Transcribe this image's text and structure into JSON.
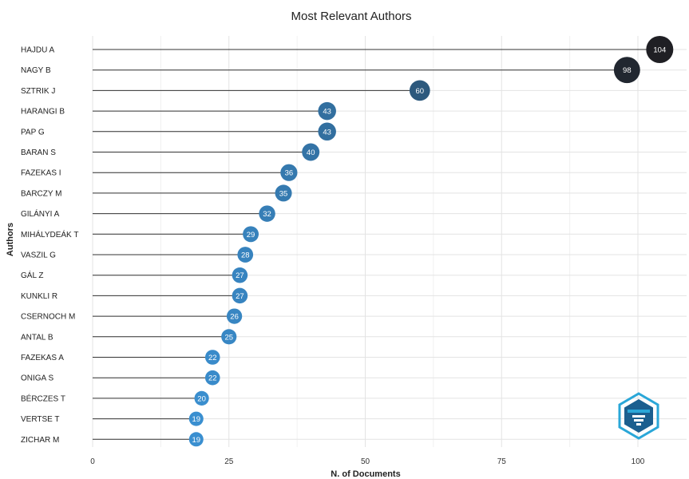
{
  "chart_data": {
    "type": "lollipop",
    "title": "Most Relevant Authors",
    "xlabel": "N. of Documents",
    "ylabel": "Authors",
    "xlim": [
      0,
      108
    ],
    "xticks": [
      0,
      25,
      50,
      75,
      100
    ],
    "grid": true,
    "categories": [
      "HAJDU A",
      "NAGY B",
      "SZTRIK J",
      "HARANGI B",
      "PAP G",
      "BARAN S",
      "FAZEKAS I",
      "BARCZY M",
      "GILÁNYI A",
      "MIHÁLYDEÁK T",
      "VASZIL G",
      "GÁL Z",
      "KUNKLI R",
      "CSERNOCH M",
      "ANTAL B",
      "FAZEKAS A",
      "ONIGA S",
      "BÉRCZES T",
      "VERTSE T",
      "ZICHAR M"
    ],
    "values": [
      104,
      98,
      60,
      43,
      43,
      40,
      36,
      35,
      32,
      29,
      28,
      27,
      27,
      26,
      25,
      22,
      22,
      20,
      19,
      19
    ],
    "color_low": "#3a8fd0",
    "color_high": "#1f1f24"
  },
  "logo": {
    "colors": {
      "primary": "#2aa7d8",
      "dark": "#1b5f8f"
    }
  }
}
